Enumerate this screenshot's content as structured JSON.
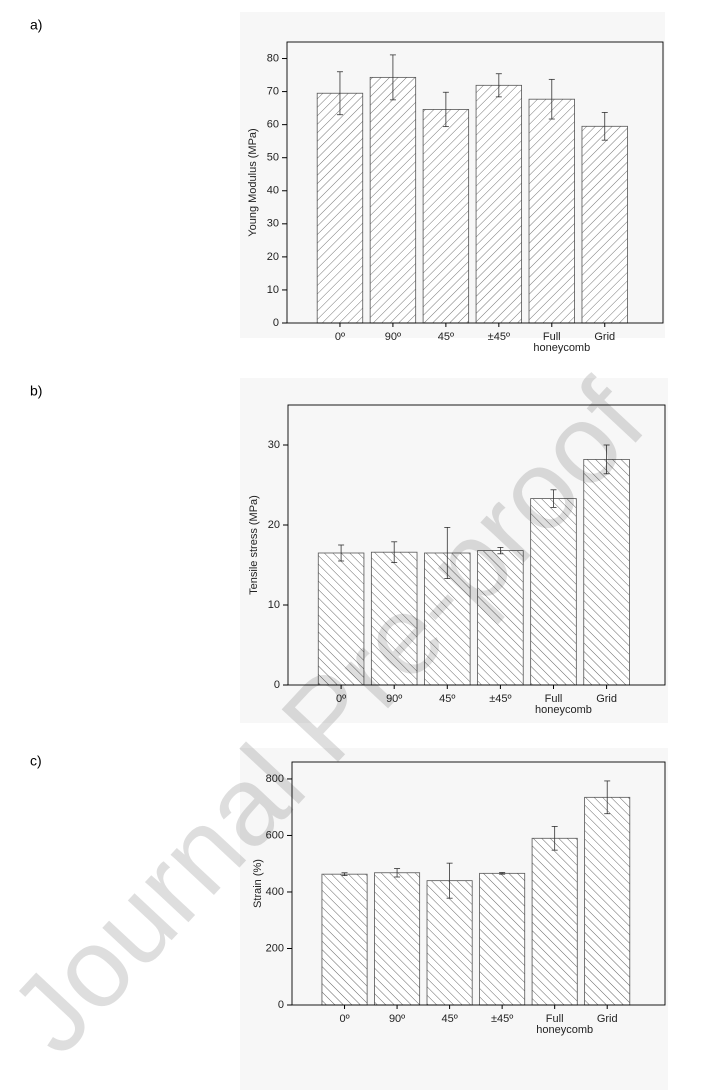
{
  "chart_data": [
    {
      "type": "bar",
      "panel": "a)",
      "ylabel": "Young Modulus (MPa)",
      "categories": [
        "0º",
        "90º",
        "45º",
        "±45º",
        "Full honeycomb",
        "Grid"
      ],
      "values": [
        69.5,
        74.3,
        64.6,
        71.9,
        67.7,
        59.5
      ],
      "errors": [
        6.5,
        6.8,
        5.2,
        3.5,
        6.0,
        4.2
      ],
      "color": "#555555",
      "hatch": "forward",
      "ylim": [
        0,
        85
      ],
      "yticks": [
        0,
        10,
        20,
        30,
        40,
        50,
        60,
        70,
        80
      ]
    },
    {
      "type": "bar",
      "panel": "b)",
      "ylabel": "Tensile stress (MPa)",
      "categories": [
        "0º",
        "90º",
        "45º",
        "±45º",
        "Full honeycomb",
        "Grid"
      ],
      "values": [
        16.5,
        16.6,
        16.5,
        16.8,
        23.3,
        28.2
      ],
      "errors": [
        1.0,
        1.3,
        3.2,
        0.4,
        1.1,
        1.8
      ],
      "color": "#555555",
      "hatch": "back",
      "ylim": [
        0,
        35
      ],
      "yticks": [
        0,
        10,
        20,
        30
      ]
    },
    {
      "type": "bar",
      "panel": "c)",
      "ylabel": "Strain (%)",
      "categories": [
        "0º",
        "90º",
        "45º",
        "±45º",
        "Full honeycomb",
        "Grid"
      ],
      "values": [
        463,
        468,
        440,
        466,
        590,
        735
      ],
      "errors": [
        5,
        15,
        62,
        3,
        42,
        58
      ],
      "color": "#555555",
      "hatch": "back",
      "ylim": [
        0,
        860
      ],
      "yticks": [
        0,
        200,
        400,
        600,
        800
      ]
    }
  ],
  "watermark": "Journal Pre-proof"
}
